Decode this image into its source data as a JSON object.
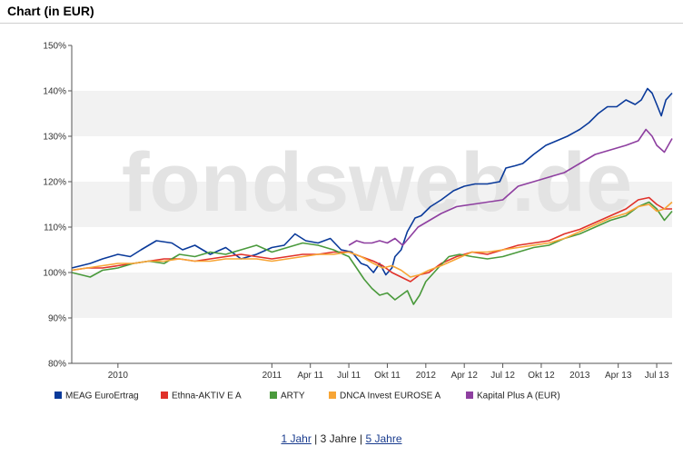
{
  "header": {
    "title": "Chart (in EUR)"
  },
  "watermark": "fondsweb.de",
  "footer": {
    "links": [
      {
        "label": "1 Jahr",
        "active": false
      },
      {
        "label": "3 Jahre",
        "active": true
      },
      {
        "label": "5 Jahre",
        "active": false
      }
    ],
    "separator": "|"
  },
  "colors": {
    "band": "#f2f2f2",
    "axis": "#555555",
    "watermark": "#e3e3e3"
  },
  "chart_data": {
    "type": "line",
    "title": "Chart (in EUR)",
    "xlabel": "",
    "ylabel": "",
    "x_tick_labels": [
      "2010",
      "2011",
      "Apr 11",
      "Jul 11",
      "Okt 11",
      "2012",
      "Apr 12",
      "Jul 12",
      "Okt 12",
      "2013",
      "Apr 13",
      "Jul 13"
    ],
    "x_tick_times": [
      2010.0,
      2011.0,
      2011.25,
      2011.5,
      2011.75,
      2012.0,
      2012.25,
      2012.5,
      2012.75,
      2013.0,
      2013.25,
      2013.5
    ],
    "xlim": [
      2009.7,
      2013.6
    ],
    "y_tick_labels": [
      "80%",
      "90%",
      "100%",
      "110%",
      "120%",
      "130%",
      "140%",
      "150%"
    ],
    "ylim": [
      80,
      150
    ],
    "grid": "alternating horizontal bands",
    "legend_position": "bottom",
    "series": [
      {
        "name": "MEAG EuroErtrag",
        "color": "#0a3a9a",
        "x": [
          2009.7,
          2009.76,
          2009.82,
          2009.9,
          2010.0,
          2010.08,
          2010.15,
          2010.25,
          2010.35,
          2010.42,
          2010.5,
          2010.6,
          2010.7,
          2010.8,
          2010.9,
          2011.0,
          2011.08,
          2011.15,
          2011.22,
          2011.3,
          2011.38,
          2011.45,
          2011.52,
          2011.58,
          2011.62,
          2011.66,
          2011.7,
          2011.74,
          2011.78,
          2011.8,
          2011.84,
          2011.88,
          2011.93,
          2011.97,
          2012.03,
          2012.1,
          2012.18,
          2012.25,
          2012.32,
          2012.4,
          2012.48,
          2012.52,
          2012.58,
          2012.63,
          2012.7,
          2012.78,
          2012.85,
          2012.92,
          2013.0,
          2013.06,
          2013.12,
          2013.18,
          2013.24,
          2013.3,
          2013.36,
          2013.4,
          2013.44,
          2013.47,
          2013.5,
          2013.53,
          2013.56,
          2013.6
        ],
        "values": [
          101,
          101.5,
          102,
          103,
          104,
          103.5,
          105,
          107,
          106.5,
          105,
          106,
          104,
          105.5,
          103,
          104,
          105.5,
          106,
          108.5,
          107,
          106.5,
          107.5,
          105,
          104.5,
          102,
          101.5,
          100,
          102,
          99.5,
          101,
          103.5,
          105,
          109,
          112,
          112.5,
          114.5,
          116,
          118,
          119,
          119.5,
          119.5,
          120,
          123,
          123.5,
          124,
          126,
          128,
          129,
          130,
          131.5,
          133,
          135,
          136.5,
          136.5,
          138,
          137,
          138,
          140.5,
          139.5,
          137,
          134.5,
          138,
          139.5
        ]
      },
      {
        "name": "Ethna-AKTIV E A",
        "color": "#e0312a",
        "x": [
          2009.7,
          2009.8,
          2009.9,
          2010.0,
          2010.1,
          2010.2,
          2010.3,
          2010.4,
          2010.5,
          2010.6,
          2010.7,
          2010.8,
          2010.9,
          2011.0,
          2011.1,
          2011.2,
          2011.3,
          2011.4,
          2011.5,
          2011.58,
          2011.66,
          2011.72,
          2011.78,
          2011.84,
          2011.9,
          2011.96,
          2012.02,
          2012.1,
          2012.2,
          2012.3,
          2012.4,
          2012.5,
          2012.6,
          2012.7,
          2012.8,
          2012.9,
          2013.0,
          2013.1,
          2013.2,
          2013.3,
          2013.38,
          2013.45,
          2013.5,
          2013.55,
          2013.6
        ],
        "values": [
          100.5,
          101,
          101,
          101.5,
          102,
          102.5,
          103,
          103,
          102.5,
          103,
          103.5,
          104,
          103.5,
          103,
          103.5,
          104,
          104,
          104.5,
          104.5,
          103.5,
          102.5,
          101.5,
          100,
          99,
          98,
          99.5,
          100,
          102,
          103.5,
          104.5,
          104,
          105,
          106,
          106.5,
          107,
          108.5,
          109.5,
          111,
          112.5,
          114,
          116,
          116.5,
          115,
          114,
          114
        ]
      },
      {
        "name": "ARTY",
        "color": "#4a9a3c",
        "x": [
          2009.7,
          2009.76,
          2009.82,
          2009.9,
          2010.0,
          2010.1,
          2010.2,
          2010.3,
          2010.4,
          2010.5,
          2010.6,
          2010.7,
          2010.8,
          2010.9,
          2011.0,
          2011.1,
          2011.2,
          2011.3,
          2011.4,
          2011.5,
          2011.55,
          2011.6,
          2011.65,
          2011.7,
          2011.75,
          2011.8,
          2011.84,
          2011.88,
          2011.92,
          2011.96,
          2012.0,
          2012.08,
          2012.15,
          2012.22,
          2012.3,
          2012.4,
          2012.5,
          2012.6,
          2012.7,
          2012.8,
          2012.9,
          2013.0,
          2013.1,
          2013.2,
          2013.3,
          2013.38,
          2013.45,
          2013.5,
          2013.55,
          2013.6
        ],
        "values": [
          100,
          99.5,
          99,
          100.5,
          101,
          102,
          102.5,
          102,
          104,
          103.5,
          104.5,
          104,
          105,
          106,
          104.5,
          105.5,
          106.5,
          106,
          105,
          103.5,
          101,
          98.5,
          96.5,
          95,
          95.5,
          94,
          95,
          96,
          93,
          95,
          98,
          101,
          103.5,
          104,
          103.5,
          103,
          103.5,
          104.5,
          105.5,
          106,
          107.5,
          108.5,
          110,
          111.5,
          112.5,
          114.5,
          115.5,
          114,
          111.5,
          113.5
        ]
      },
      {
        "name": "DNCA Invest EUROSE A",
        "color": "#f7a535",
        "x": [
          2009.7,
          2009.8,
          2009.9,
          2010.0,
          2010.1,
          2010.2,
          2010.3,
          2010.4,
          2010.5,
          2010.6,
          2010.7,
          2010.8,
          2010.9,
          2011.0,
          2011.1,
          2011.2,
          2011.3,
          2011.4,
          2011.5,
          2011.58,
          2011.66,
          2011.72,
          2011.78,
          2011.84,
          2011.9,
          2011.96,
          2012.02,
          2012.1,
          2012.2,
          2012.3,
          2012.4,
          2012.5,
          2012.6,
          2012.7,
          2012.8,
          2012.9,
          2013.0,
          2013.1,
          2013.2,
          2013.3,
          2013.38,
          2013.45,
          2013.5,
          2013.55,
          2013.6
        ],
        "values": [
          100.5,
          101,
          101.5,
          102,
          102,
          102.5,
          102.5,
          103,
          102.5,
          102.5,
          103,
          103,
          103,
          102.5,
          103,
          103.5,
          104,
          104,
          104.5,
          103.5,
          102,
          101,
          101.5,
          100.5,
          99,
          99.5,
          100.5,
          101.5,
          103,
          104.5,
          104.5,
          105,
          105.5,
          106,
          106.5,
          107.5,
          109,
          110.5,
          112,
          113,
          114.5,
          115,
          113.5,
          114,
          115.5
        ]
      },
      {
        "name": "Kapital Plus A (EUR)",
        "color": "#8e3fa0",
        "x": [
          2011.5,
          2011.55,
          2011.6,
          2011.65,
          2011.7,
          2011.75,
          2011.8,
          2011.85,
          2011.9,
          2011.95,
          2012.0,
          2012.1,
          2012.2,
          2012.3,
          2012.4,
          2012.5,
          2012.6,
          2012.7,
          2012.8,
          2012.9,
          2013.0,
          2013.1,
          2013.2,
          2013.3,
          2013.38,
          2013.43,
          2013.47,
          2013.5,
          2013.55,
          2013.6
        ],
        "values": [
          106,
          107,
          106.5,
          106.5,
          107,
          106.5,
          107.5,
          106,
          108,
          110,
          111,
          113,
          114.5,
          115,
          115.5,
          116,
          119,
          120,
          121,
          122,
          124,
          126,
          127,
          128,
          129,
          131.5,
          130,
          128,
          126.5,
          129.5
        ]
      }
    ]
  }
}
